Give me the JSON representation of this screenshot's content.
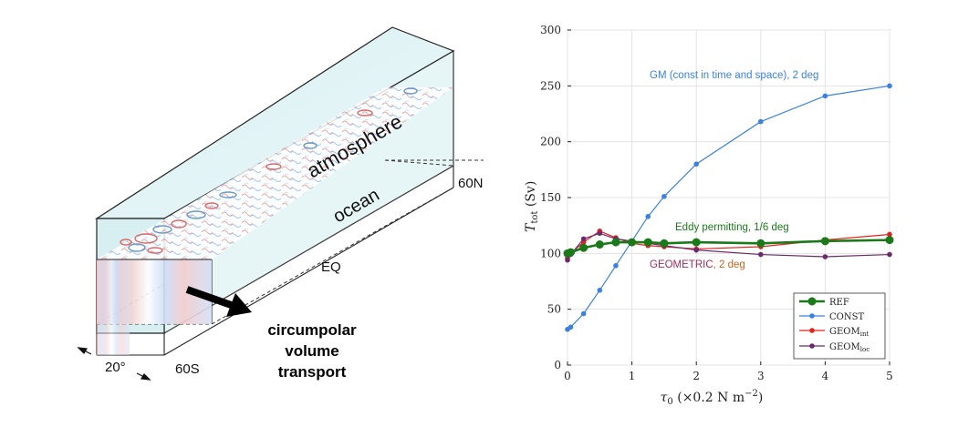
{
  "schematic": {
    "atmosphere_label": "atmosphere",
    "ocean_label": "ocean",
    "lat_60N": "60N",
    "lat_EQ": "EQ",
    "lat_60S": "60S",
    "width_label": "20°",
    "transport_label_line1": "circumpolar",
    "transport_label_line2": "volume",
    "transport_label_line3": "transport"
  },
  "chart_data": {
    "type": "line",
    "xlabel": "τ₀ (×0.2 N m⁻²)",
    "ylabel": "T_tot (Sv)",
    "xlim": [
      0,
      5
    ],
    "ylim": [
      0,
      300
    ],
    "xticks": [
      0,
      1,
      2,
      3,
      4,
      5
    ],
    "yticks": [
      0,
      50,
      100,
      150,
      200,
      250,
      300
    ],
    "grid": true,
    "legend_position": "bottom-right",
    "series": [
      {
        "name": "REF",
        "color": "#1a7a1a",
        "x": [
          0,
          0.05,
          0.25,
          0.5,
          0.75,
          1.0,
          1.25,
          1.5,
          2,
          3,
          4,
          5
        ],
        "y": [
          100,
          101,
          105,
          108,
          110,
          110,
          110,
          109,
          110,
          109,
          111,
          112
        ]
      },
      {
        "name": "CONST",
        "color": "#3b82e0",
        "x": [
          0,
          0.05,
          0.25,
          0.5,
          0.75,
          1.0,
          1.25,
          1.5,
          2,
          3,
          4,
          5
        ],
        "y": [
          32,
          34,
          46,
          67,
          89,
          111,
          133,
          151,
          180,
          218,
          241,
          250
        ]
      },
      {
        "name": "GEOM_int",
        "color": "#e0231f",
        "x": [
          0,
          0.05,
          0.25,
          0.5,
          0.75,
          1.0,
          1.25,
          1.5,
          2,
          3,
          4,
          5
        ],
        "y": [
          96,
          100,
          110,
          120,
          114,
          109,
          107,
          106,
          104,
          106,
          112,
          117
        ]
      },
      {
        "name": "GEOM_loc",
        "color": "#6a2a6e",
        "x": [
          0,
          0.05,
          0.25,
          0.5,
          0.75,
          1.0,
          1.25,
          1.5,
          2,
          3,
          4,
          5
        ],
        "y": [
          94,
          99,
          113,
          118,
          113,
          111,
          109,
          107,
          103,
          99,
          97,
          99
        ]
      }
    ],
    "annotations": [
      {
        "text": "GM (const in time and space), 2 deg",
        "color": "#3b82e0"
      },
      {
        "text": "Eddy permitting, 1/6 deg",
        "color": "#1a7a1a"
      },
      {
        "text": "GEOMETRIC",
        "color": "#a0305a"
      },
      {
        "text": ", 2 deg",
        "color": "#c8641e"
      }
    ],
    "legend": [
      {
        "base": "REF",
        "sub": ""
      },
      {
        "base": "CONST",
        "sub": ""
      },
      {
        "base": "GEOM",
        "sub": "int"
      },
      {
        "base": "GEOM",
        "sub": "loc"
      }
    ],
    "xlabel_parts": {
      "sym": "τ",
      "sub": "0",
      "rest": " (×0.2 N m",
      "sup": "−2",
      "close": ")"
    },
    "ylabel_parts": {
      "sym": "T",
      "sub": "tot",
      "rest": " (Sv)"
    }
  }
}
